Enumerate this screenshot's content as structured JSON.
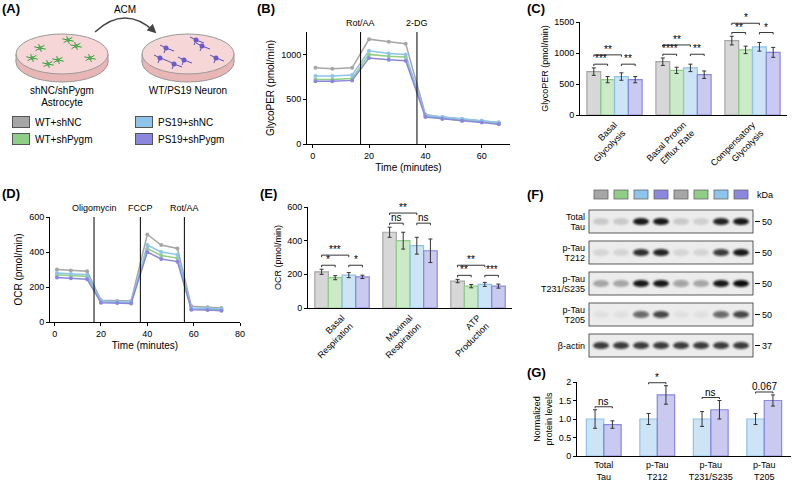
{
  "figure": {
    "panel_a": {
      "panel": "(A)",
      "left_dish": [
        "shNC/shPygm",
        "Astrocyte"
      ],
      "right_dish": [
        "WT/PS19 Neuron"
      ],
      "arrow_label": "ACM"
    },
    "groups": [
      {
        "name": "WT+shNC",
        "color": "#a6a6a6"
      },
      {
        "name": "WT+shPygm",
        "color": "#8fce86"
      },
      {
        "name": "PS19+shNC",
        "color": "#8ec3ea"
      },
      {
        "name": "PS19+shPygm",
        "color": "#8a87dc"
      }
    ],
    "blot": {
      "panel": "(F)",
      "unit": "kDa",
      "lanes": [
        "WT+shNC",
        "WT+shPygm",
        "PS19+shNC",
        "PS19+shPygm",
        "WT+shNC",
        "WT+shPygm",
        "PS19+shNC",
        "PS19+shPygm"
      ],
      "rows": [
        {
          "label": "Total Tau",
          "marker": 50,
          "bands": [
            0.15,
            0.15,
            0.95,
            0.95,
            0.15,
            0.12,
            0.9,
            0.95
          ]
        },
        {
          "label": "p-Tau T212",
          "marker": 50,
          "bands": [
            0.1,
            0.1,
            0.85,
            0.9,
            0.1,
            0.1,
            0.8,
            0.95
          ]
        },
        {
          "label": "p-Tau T231/S235",
          "marker": 50,
          "bands": [
            0.3,
            0.3,
            0.95,
            0.95,
            0.35,
            0.3,
            0.95,
            1
          ]
        },
        {
          "label": "p-Tau T205",
          "marker": 50,
          "bands": [
            0.05,
            0.05,
            0.6,
            0.75,
            0.05,
            0.05,
            0.6,
            0.75
          ]
        },
        {
          "label": "β-actin",
          "marker": 37,
          "bands": [
            0.8,
            0.8,
            0.8,
            0.8,
            0.8,
            0.8,
            0.8,
            0.8
          ]
        }
      ]
    }
  },
  "chart_data": [
    {
      "panel": "(B)",
      "type": "line",
      "marker": "circle",
      "grid": false,
      "xlabel": "Time (minutes)",
      "ylabel": "GlycoPER (pmol/min)",
      "x": [
        1,
        7,
        14,
        20,
        27,
        33,
        40,
        46,
        53,
        60,
        66
      ],
      "series": [
        {
          "name": "WT+shNC",
          "color": "#a6a6a6",
          "values": [
            850,
            840,
            850,
            1170,
            1140,
            1120,
            330,
            300,
            280,
            260,
            240
          ]
        },
        {
          "name": "WT+shPygm",
          "color": "#8fce86",
          "values": [
            720,
            720,
            730,
            1000,
            980,
            970,
            310,
            290,
            260,
            250,
            230
          ]
        },
        {
          "name": "PS19+shNC",
          "color": "#8ec3ea",
          "values": [
            760,
            760,
            770,
            1040,
            1010,
            1000,
            320,
            300,
            280,
            260,
            240
          ]
        },
        {
          "name": "PS19+shPygm",
          "color": "#8a87dc",
          "values": [
            700,
            700,
            710,
            960,
            940,
            930,
            300,
            280,
            260,
            240,
            220
          ]
        }
      ],
      "xlim": [
        -2,
        70
      ],
      "xticks": [
        0,
        20,
        40,
        60
      ],
      "ylim": [
        0,
        1250
      ],
      "yticks": [
        0,
        500,
        1000
      ],
      "vlines": [
        {
          "x": 17,
          "label": "Rot/AA"
        },
        {
          "x": 37,
          "label": "2-DG"
        }
      ]
    },
    {
      "panel": "(C)",
      "type": "bar",
      "grid": false,
      "ylabel": "GlycoPER (pmol/min)",
      "categories": [
        "Basal Glycolysis",
        "Basal Proton Efflux Rate",
        "Compensatory Glycolysis"
      ],
      "series": [
        {
          "name": "WT+shNC",
          "color": "#a6a6a6",
          "values": [
            700,
            860,
            1200
          ],
          "errors": [
            60,
            60,
            70
          ]
        },
        {
          "name": "WT+shPygm",
          "color": "#8fce86",
          "values": [
            570,
            720,
            1050
          ],
          "errors": [
            50,
            50,
            60
          ]
        },
        {
          "name": "PS19+shNC",
          "color": "#8ec3ea",
          "values": [
            620,
            760,
            1100
          ],
          "errors": [
            60,
            60,
            70
          ]
        },
        {
          "name": "PS19+shPygm",
          "color": "#8a87dc",
          "values": [
            570,
            650,
            1010
          ],
          "errors": [
            50,
            60,
            80
          ]
        }
      ],
      "ylim": [
        0,
        1500
      ],
      "yticks": [
        0,
        500,
        1000,
        1500
      ],
      "comparisons": [
        {
          "category": 0,
          "pair": [
            0,
            2
          ],
          "label": "**"
        },
        {
          "category": 0,
          "pair": [
            0,
            1
          ],
          "label": "***"
        },
        {
          "category": 0,
          "pair": [
            2,
            3
          ],
          "label": "**"
        },
        {
          "category": 1,
          "pair": [
            0,
            2
          ],
          "label": "**"
        },
        {
          "category": 1,
          "pair": [
            0,
            1
          ],
          "label": "****"
        },
        {
          "category": 1,
          "pair": [
            2,
            3
          ],
          "label": "**"
        },
        {
          "category": 2,
          "pair": [
            0,
            2
          ],
          "label": "*"
        },
        {
          "category": 2,
          "pair": [
            0,
            1
          ],
          "label": "**"
        },
        {
          "category": 2,
          "pair": [
            2,
            3
          ],
          "label": "*"
        }
      ]
    },
    {
      "panel": "(D)",
      "type": "line",
      "marker": "circle",
      "grid": false,
      "xlabel": "Time (minutes)",
      "ylabel": "OCR (pmol/min)",
      "x": [
        1,
        7,
        14,
        20,
        27,
        33,
        40,
        46,
        53,
        59,
        66,
        72
      ],
      "series": [
        {
          "name": "WT+shNC",
          "color": "#a6a6a6",
          "values": [
            300,
            295,
            290,
            125,
            120,
            120,
            500,
            440,
            420,
            90,
            85,
            80
          ]
        },
        {
          "name": "WT+shPygm",
          "color": "#8fce86",
          "values": [
            270,
            265,
            260,
            115,
            112,
            110,
            420,
            380,
            365,
            75,
            72,
            70
          ]
        },
        {
          "name": "PS19+shNC",
          "color": "#8ec3ea",
          "values": [
            280,
            275,
            270,
            120,
            115,
            115,
            440,
            400,
            385,
            80,
            78,
            75
          ]
        },
        {
          "name": "PS19+shPygm",
          "color": "#8a87dc",
          "values": [
            255,
            250,
            245,
            110,
            108,
            106,
            400,
            360,
            345,
            70,
            68,
            65
          ]
        }
      ],
      "xlim": [
        -2,
        80
      ],
      "xticks": [
        0,
        20,
        40,
        60,
        80
      ],
      "ylim": [
        0,
        600
      ],
      "yticks": [
        0,
        200,
        400,
        600
      ],
      "vlines": [
        {
          "x": 17,
          "label": "Oligomycin"
        },
        {
          "x": 37,
          "label": "FCCP"
        },
        {
          "x": 56,
          "label": "Rot/AA"
        }
      ]
    },
    {
      "panel": "(E)",
      "type": "bar",
      "grid": false,
      "ylabel": "OCR (pmol/min)",
      "categories": [
        "Basal Respiration",
        "Maximal Respiration",
        "ATP Production"
      ],
      "series": [
        {
          "name": "WT+shNC",
          "color": "#a6a6a6",
          "values": [
            215,
            450,
            160
          ],
          "errors": [
            15,
            30,
            10
          ]
        },
        {
          "name": "WT+shPygm",
          "color": "#8fce86",
          "values": [
            180,
            400,
            130
          ],
          "errors": [
            12,
            50,
            10
          ]
        },
        {
          "name": "PS19+shNC",
          "color": "#8ec3ea",
          "values": [
            195,
            370,
            140
          ],
          "errors": [
            15,
            50,
            12
          ]
        },
        {
          "name": "PS19+shPygm",
          "color": "#8a87dc",
          "values": [
            185,
            340,
            130
          ],
          "errors": [
            10,
            70,
            12
          ]
        }
      ],
      "ylim": [
        0,
        600
      ],
      "yticks": [
        0,
        200,
        400,
        600
      ],
      "comparisons": [
        {
          "category": 0,
          "pair": [
            0,
            2
          ],
          "label": "***"
        },
        {
          "category": 0,
          "pair": [
            0,
            1
          ],
          "label": "*"
        },
        {
          "category": 0,
          "pair": [
            2,
            3
          ],
          "label": "*"
        },
        {
          "category": 1,
          "pair": [
            0,
            2
          ],
          "label": "**"
        },
        {
          "category": 1,
          "pair": [
            0,
            1
          ],
          "label": "ns"
        },
        {
          "category": 1,
          "pair": [
            2,
            3
          ],
          "label": "ns"
        },
        {
          "category": 2,
          "pair": [
            0,
            2
          ],
          "label": "**"
        },
        {
          "category": 2,
          "pair": [
            0,
            1
          ],
          "label": "**"
        },
        {
          "category": 2,
          "pair": [
            2,
            3
          ],
          "label": "***"
        }
      ]
    },
    {
      "panel": "(G)",
      "type": "bar",
      "grid": false,
      "ylabel": "Normalized protein levels",
      "categories": [
        "Total Tau",
        "p-Tau T212",
        "p-Tau T231/S235",
        "p-Tau T205"
      ],
      "series": [
        {
          "name": "PS19+shNC",
          "color": "#8ec3ea",
          "values": [
            1.0,
            1.0,
            1.0,
            1.0
          ],
          "errors": [
            0.25,
            0.15,
            0.2,
            0.15
          ]
        },
        {
          "name": "PS19+shPygm",
          "color": "#8a87dc",
          "values": [
            0.85,
            1.65,
            1.25,
            1.5
          ],
          "errors": [
            0.1,
            0.25,
            0.25,
            0.15
          ]
        }
      ],
      "ylim": [
        0,
        2
      ],
      "yticks": [
        0,
        0.5,
        {
          "value": 1,
          "label": "1.0"
        },
        1.5,
        2
      ],
      "comparisons": [
        {
          "category": 0,
          "pair": [
            0,
            1
          ],
          "label": "ns"
        },
        {
          "category": 1,
          "pair": [
            0,
            1
          ],
          "label": "*"
        },
        {
          "category": 2,
          "pair": [
            0,
            1
          ],
          "label": "ns"
        },
        {
          "category": 3,
          "pair": [
            0,
            1
          ],
          "label": "0.067"
        }
      ]
    }
  ]
}
